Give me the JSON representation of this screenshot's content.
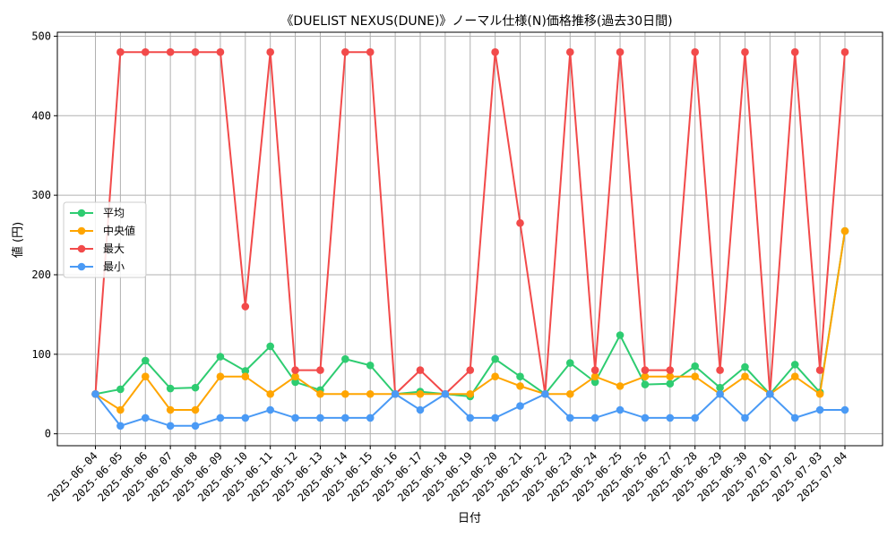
{
  "chart_data": {
    "type": "line",
    "title": "《DUELIST NEXUS(DUNE)》ノーマル仕様(N)価格推移(過去30日間)",
    "xlabel": "日付",
    "ylabel": "値 (円)",
    "ylim": [
      -15,
      505
    ],
    "yticks": [
      0,
      100,
      200,
      300,
      400,
      500
    ],
    "grid": true,
    "legend_position": "center-left",
    "categories": [
      "2025-06-04",
      "2025-06-05",
      "2025-06-06",
      "2025-06-07",
      "2025-06-08",
      "2025-06-09",
      "2025-06-10",
      "2025-06-11",
      "2025-06-12",
      "2025-06-13",
      "2025-06-14",
      "2025-06-15",
      "2025-06-16",
      "2025-06-17",
      "2025-06-18",
      "2025-06-19",
      "2025-06-20",
      "2025-06-21",
      "2025-06-22",
      "2025-06-23",
      "2025-06-24",
      "2025-06-25",
      "2025-06-26",
      "2025-06-27",
      "2025-06-28",
      "2025-06-29",
      "2025-06-30",
      "2025-07-01",
      "2025-07-02",
      "2025-07-03",
      "2025-07-04"
    ],
    "series": [
      {
        "name": "平均",
        "color": "#2ecc71",
        "values": [
          50,
          56,
          92,
          57,
          58,
          97,
          79,
          110,
          65,
          55,
          94,
          86,
          50,
          53,
          50,
          47,
          94,
          72,
          50,
          89,
          65,
          124,
          62,
          63,
          85,
          58,
          84,
          50,
          87,
          52,
          255
        ]
      },
      {
        "name": "中央値",
        "color": "#ffa500",
        "values": [
          50,
          30,
          72,
          30,
          30,
          72,
          72,
          50,
          72,
          50,
          50,
          50,
          50,
          50,
          50,
          50,
          72,
          60,
          50,
          50,
          72,
          60,
          72,
          72,
          72,
          50,
          72,
          50,
          72,
          50,
          255
        ]
      },
      {
        "name": "最大",
        "color": "#f24a4a",
        "values": [
          50,
          480,
          480,
          480,
          480,
          480,
          160,
          480,
          80,
          80,
          480,
          480,
          50,
          80,
          50,
          80,
          480,
          265,
          50,
          480,
          80,
          480,
          80,
          80,
          480,
          80,
          480,
          50,
          480,
          80,
          480
        ]
      },
      {
        "name": "最小",
        "color": "#4a9af5",
        "values": [
          50,
          10,
          20,
          10,
          10,
          20,
          20,
          30,
          20,
          20,
          20,
          20,
          50,
          30,
          50,
          20,
          20,
          35,
          50,
          20,
          20,
          30,
          20,
          20,
          20,
          50,
          20,
          50,
          20,
          30,
          30
        ]
      }
    ]
  }
}
